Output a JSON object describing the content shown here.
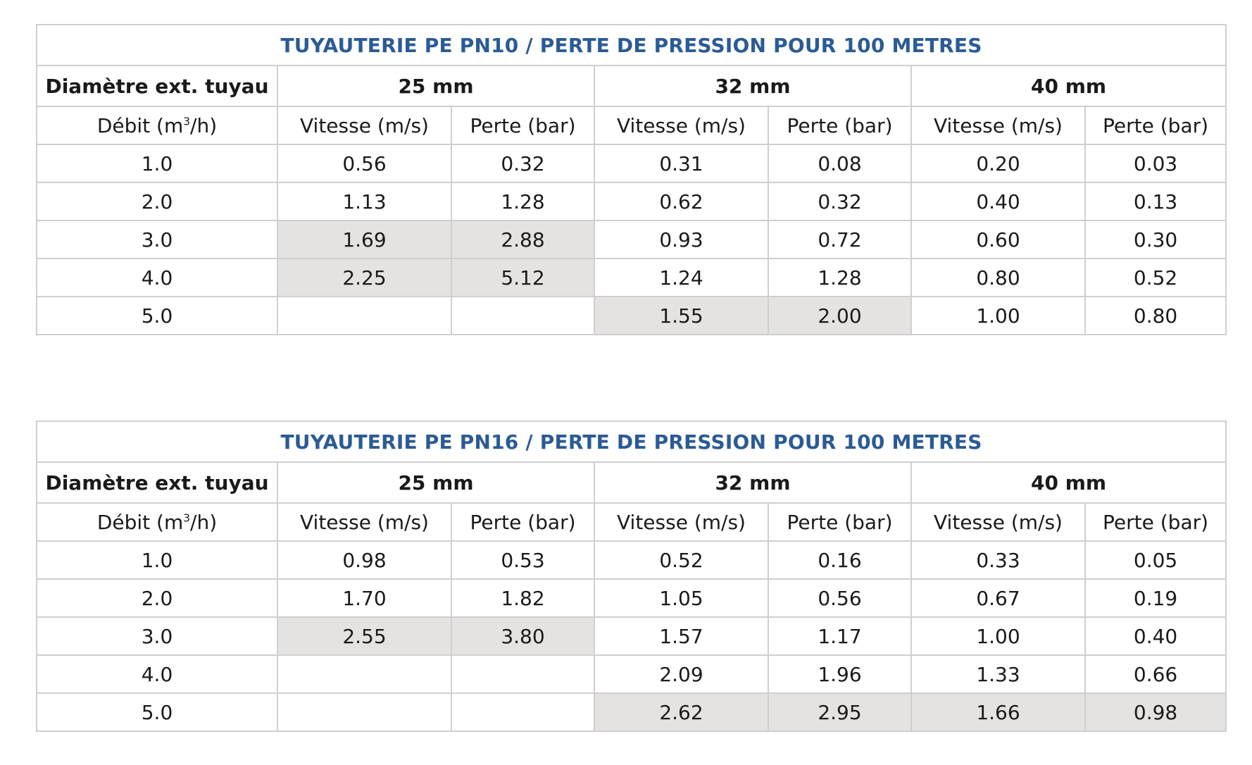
{
  "tables": [
    {
      "title": "TUYAUTERIE PE PN10 / PERTE DE PRESSION POUR 100 METRES",
      "diameter_header": "Diamètre ext. tuyau",
      "diameters": [
        "25 mm",
        "32 mm",
        "40 mm"
      ],
      "flow_header_prefix": "Débit (m",
      "flow_header_sup": "3",
      "flow_header_suffix": "/h)",
      "speed_header": "Vitesse (m/s)",
      "loss_header": "Perte (bar)",
      "rows": [
        {
          "flow": "1.0",
          "cells": [
            "0.56",
            "0.32",
            "0.31",
            "0.08",
            "0.20",
            "0.03"
          ],
          "shaded": [
            false,
            false,
            false,
            false,
            false,
            false
          ]
        },
        {
          "flow": "2.0",
          "cells": [
            "1.13",
            "1.28",
            "0.62",
            "0.32",
            "0.40",
            "0.13"
          ],
          "shaded": [
            false,
            false,
            false,
            false,
            false,
            false
          ]
        },
        {
          "flow": "3.0",
          "cells": [
            "1.69",
            "2.88",
            "0.93",
            "0.72",
            "0.60",
            "0.30"
          ],
          "shaded": [
            true,
            true,
            false,
            false,
            false,
            false
          ]
        },
        {
          "flow": "4.0",
          "cells": [
            "2.25",
            "5.12",
            "1.24",
            "1.28",
            "0.80",
            "0.52"
          ],
          "shaded": [
            true,
            true,
            false,
            false,
            false,
            false
          ]
        },
        {
          "flow": "5.0",
          "cells": [
            "",
            "",
            "1.55",
            "2.00",
            "1.00",
            "0.80"
          ],
          "shaded": [
            false,
            false,
            true,
            true,
            false,
            false
          ]
        }
      ]
    },
    {
      "title": "TUYAUTERIE PE PN16 / PERTE DE PRESSION POUR 100 METRES",
      "diameter_header": "Diamètre ext. tuyau",
      "diameters": [
        "25 mm",
        "32 mm",
        "40 mm"
      ],
      "flow_header_prefix": "Débit (m",
      "flow_header_sup": "3",
      "flow_header_suffix": "/h)",
      "speed_header": "Vitesse (m/s)",
      "loss_header": "Perte (bar)",
      "rows": [
        {
          "flow": "1.0",
          "cells": [
            "0.98",
            "0.53",
            "0.52",
            "0.16",
            "0.33",
            "0.05"
          ],
          "shaded": [
            false,
            false,
            false,
            false,
            false,
            false
          ]
        },
        {
          "flow": "2.0",
          "cells": [
            "1.70",
            "1.82",
            "1.05",
            "0.56",
            "0.67",
            "0.19"
          ],
          "shaded": [
            false,
            false,
            false,
            false,
            false,
            false
          ]
        },
        {
          "flow": "3.0",
          "cells": [
            "2.55",
            "3.80",
            "1.57",
            "1.17",
            "1.00",
            "0.40"
          ],
          "shaded": [
            true,
            true,
            false,
            false,
            false,
            false
          ]
        },
        {
          "flow": "4.0",
          "cells": [
            "",
            "",
            "2.09",
            "1.96",
            "1.33",
            "0.66"
          ],
          "shaded": [
            false,
            false,
            false,
            false,
            false,
            false
          ]
        },
        {
          "flow": "5.0",
          "cells": [
            "",
            "",
            "2.62",
            "2.95",
            "1.66",
            "0.98"
          ],
          "shaded": [
            false,
            false,
            true,
            true,
            true,
            true
          ]
        }
      ]
    }
  ],
  "colors": {
    "title": "#2b5b95",
    "shade": "#e5e3e1",
    "border": "#cfcfcf"
  }
}
